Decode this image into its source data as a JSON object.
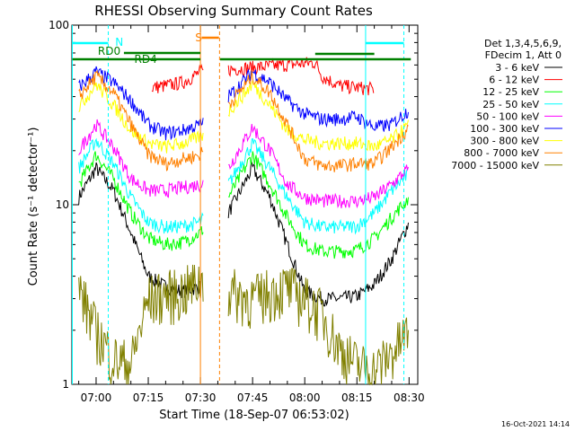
{
  "chart_data": {
    "type": "line",
    "title": "RHESSI Observing Summary Count Rates",
    "xlabel": "Start Time (18-Sep-07 06:53:02)",
    "ylabel": "Count Rate (s⁻¹ detector⁻¹)",
    "y_scale": "log",
    "ylim": [
      1,
      100
    ],
    "xlim": [
      "06:53:02",
      "08:32:30"
    ],
    "x_ticks": [
      "07:00",
      "07:15",
      "07:30",
      "07:45",
      "08:00",
      "08:15",
      "08:30"
    ],
    "y_ticks": [
      "1",
      "10",
      "100"
    ],
    "legend_title": [
      "Det 1,3,4,5,6,9,",
      "FDecim 1, Att 0"
    ],
    "legend_placement": "right",
    "series": [
      {
        "name": "3 - 6 keV",
        "color": "#000000",
        "x": [
          "06:55",
          "07:00",
          "07:05",
          "07:10",
          "07:15",
          "07:20",
          "07:25",
          "07:30",
          "07:33",
          "07:38",
          "07:45",
          "07:50",
          "07:55",
          "08:00",
          "08:05",
          "08:10",
          "08:15",
          "08:20",
          "08:25",
          "08:30"
        ],
        "y": [
          11,
          16,
          12,
          7,
          4,
          3.5,
          3.3,
          3.5,
          null,
          9,
          16,
          11,
          6,
          3.3,
          3,
          3,
          3.1,
          3.6,
          5,
          8
        ]
      },
      {
        "name": "6 - 12 keV",
        "color": "#ff0000",
        "x": [
          "07:16",
          "07:20",
          "07:25",
          "07:30",
          "08:03",
          "08:05",
          "08:10",
          "08:15",
          "08:20"
        ],
        "y": [
          45,
          46,
          48,
          55,
          62,
          52,
          46,
          45,
          44
        ]
      },
      {
        "name": "12 - 25 keV",
        "color": "#00ff00",
        "x": [
          "06:55",
          "07:00",
          "07:05",
          "07:10",
          "07:15",
          "07:20",
          "07:25",
          "07:30",
          "07:38",
          "07:45",
          "07:50",
          "07:55",
          "08:00",
          "08:05",
          "08:10",
          "08:15",
          "08:20",
          "08:25",
          "08:30"
        ],
        "y": [
          13,
          19,
          14,
          9,
          6.5,
          6,
          6.2,
          7,
          11,
          19,
          13,
          8.5,
          6,
          5.5,
          5.5,
          5.6,
          6.5,
          8.5,
          11
        ]
      },
      {
        "name": "25 - 50 keV",
        "color": "#00ffff",
        "x": [
          "06:55",
          "07:00",
          "07:05",
          "07:10",
          "07:15",
          "07:20",
          "07:25",
          "07:30",
          "07:38",
          "07:45",
          "07:50",
          "07:55",
          "08:00",
          "08:05",
          "08:10",
          "08:15",
          "08:20",
          "08:25",
          "08:30"
        ],
        "y": [
          16,
          23,
          17,
          11,
          8,
          7.5,
          7.6,
          8,
          13,
          22,
          16,
          11,
          8,
          7.5,
          7.5,
          7.6,
          9,
          12,
          15
        ]
      },
      {
        "name": "50 - 100 keV",
        "color": "#ff00ff",
        "x": [
          "06:55",
          "07:00",
          "07:05",
          "07:10",
          "07:15",
          "07:20",
          "07:25",
          "07:30",
          "07:38",
          "07:45",
          "07:50",
          "07:55",
          "08:00",
          "08:05",
          "08:10",
          "08:15",
          "08:20",
          "08:25",
          "08:30"
        ],
        "y": [
          20,
          28,
          21,
          14,
          12,
          12,
          12.5,
          13,
          16,
          27,
          20,
          13,
          11,
          10.5,
          10.5,
          10.5,
          11,
          13,
          16
        ]
      },
      {
        "name": "100 - 300 keV",
        "color": "#0000ff",
        "x": [
          "06:55",
          "07:00",
          "07:05",
          "07:10",
          "07:15",
          "07:20",
          "07:25",
          "07:30",
          "07:38",
          "07:45",
          "07:50",
          "07:55",
          "08:00",
          "08:05",
          "08:10",
          "08:15",
          "08:20",
          "08:25",
          "08:30"
        ],
        "y": [
          45,
          55,
          48,
          38,
          28,
          25,
          26,
          28,
          40,
          55,
          48,
          38,
          32,
          30,
          30,
          31,
          27,
          28,
          34
        ]
      },
      {
        "name": "300 - 800 keV",
        "color": "#ffff00",
        "x": [
          "06:55",
          "07:00",
          "07:05",
          "07:10",
          "07:15",
          "07:20",
          "07:25",
          "07:30",
          "07:38",
          "07:45",
          "07:50",
          "07:55",
          "08:00",
          "08:05",
          "08:10",
          "08:15",
          "08:20",
          "08:25",
          "08:30"
        ],
        "y": [
          35,
          47,
          36,
          26,
          22,
          21,
          22,
          24,
          33,
          47,
          36,
          26,
          23,
          22,
          22,
          22,
          21,
          23,
          28
        ]
      },
      {
        "name": "800 - 7000 keV",
        "color": "#ff8000",
        "x": [
          "06:55",
          "07:00",
          "07:05",
          "07:10",
          "07:15",
          "07:20",
          "07:25",
          "07:30",
          "07:38",
          "07:45",
          "07:50",
          "07:55",
          "08:00",
          "08:05",
          "08:10",
          "08:15",
          "08:20",
          "08:25",
          "08:30"
        ],
        "y": [
          40,
          52,
          42,
          28,
          19,
          17,
          18,
          19,
          36,
          52,
          42,
          28,
          18,
          16.5,
          16.5,
          17,
          17,
          21,
          27
        ]
      },
      {
        "name": "7000 - 15000 keV",
        "color": "#808000",
        "x": [
          "06:55",
          "07:00",
          "07:05",
          "07:10",
          "07:15",
          "07:20",
          "07:25",
          "07:30",
          "07:45",
          "07:50",
          "07:55",
          "08:00",
          "08:05",
          "08:10",
          "08:15",
          "08:20",
          "08:25",
          "08:30"
        ],
        "y": [
          3.5,
          2,
          1.4,
          1.3,
          3,
          3.2,
          3.3,
          3.8,
          3,
          3.3,
          3.5,
          3,
          2.5,
          1.6,
          1.3,
          1.2,
          1.5,
          2
        ]
      }
    ],
    "annotations": [
      {
        "text": "RD0",
        "color": "#008000"
      },
      {
        "text": "RD4",
        "color": "#008000"
      },
      {
        "text": "N",
        "color": "#00ffff"
      },
      {
        "text": "S",
        "color": "#ff8000"
      }
    ],
    "footer_stamp": "16-Oct-2021 14:14"
  }
}
